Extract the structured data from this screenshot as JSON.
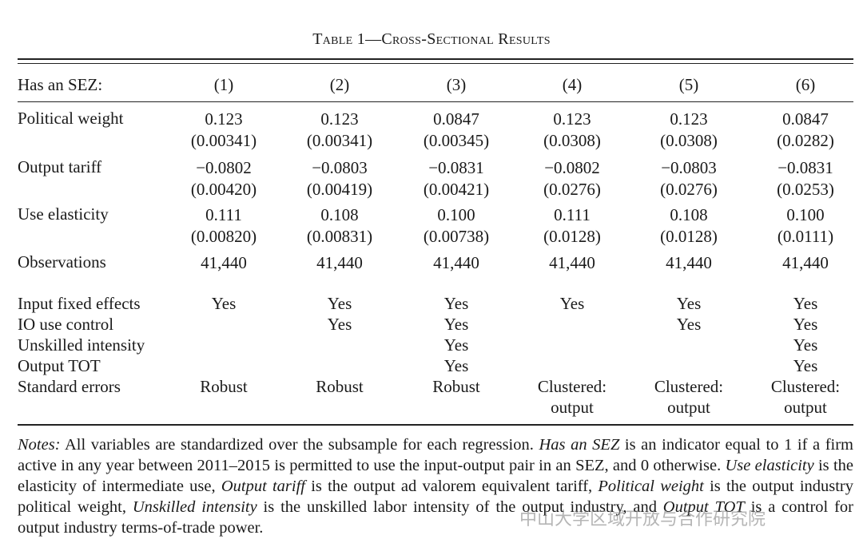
{
  "table": {
    "title": "Table 1—Cross-Sectional Results",
    "header": {
      "label": "Has an SEZ:",
      "columns": [
        "(1)",
        "(2)",
        "(3)",
        "(4)",
        "(5)",
        "(6)"
      ]
    },
    "rows": [
      {
        "label": "Political weight",
        "values": [
          "0.123",
          "0.123",
          "0.0847",
          "0.123",
          "0.123",
          "0.0847"
        ],
        "errors": [
          "(0.00341)",
          "(0.00341)",
          "(0.00345)",
          "(0.0308)",
          "(0.0308)",
          "(0.0282)"
        ]
      },
      {
        "label": "Output tariff",
        "values": [
          "−0.0802",
          "−0.0803",
          "−0.0831",
          "−0.0802",
          "−0.0803",
          "−0.0831"
        ],
        "errors": [
          "(0.00420)",
          "(0.00419)",
          "(0.00421)",
          "(0.0276)",
          "(0.0276)",
          "(0.0253)"
        ]
      },
      {
        "label": "Use elasticity",
        "values": [
          "0.111",
          "0.108",
          "0.100",
          "0.111",
          "0.108",
          "0.100"
        ],
        "errors": [
          "(0.00820)",
          "(0.00831)",
          "(0.00738)",
          "(0.0128)",
          "(0.0128)",
          "(0.0111)"
        ]
      },
      {
        "label": "Observations",
        "values": [
          "41,440",
          "41,440",
          "41,440",
          "41,440",
          "41,440",
          "41,440"
        ]
      }
    ],
    "controls": [
      {
        "label": "Input fixed effects",
        "values": [
          "Yes",
          "Yes",
          "Yes",
          "Yes",
          "Yes",
          "Yes"
        ]
      },
      {
        "label": "IO use control",
        "values": [
          null,
          "Yes",
          "Yes",
          null,
          "Yes",
          "Yes"
        ]
      },
      {
        "label": "Unskilled intensity",
        "values": [
          null,
          null,
          "Yes",
          null,
          null,
          "Yes"
        ]
      },
      {
        "label": "Output TOT",
        "values": [
          null,
          null,
          "Yes",
          null,
          null,
          "Yes"
        ]
      },
      {
        "label": "Standard errors",
        "values": [
          "Robust",
          "Robust",
          "Robust",
          "Clustered: output",
          "Clustered: output",
          "Clustered: output"
        ]
      }
    ],
    "notes": [
      {
        "text": "Notes:",
        "italic": true
      },
      {
        "text": " All variables are standardized over the subsample for each regression. ",
        "italic": false
      },
      {
        "text": "Has an SEZ",
        "italic": true
      },
      {
        "text": " is an indicator equal to 1 if a firm active in any year between 2011–2015 is permitted to use the input-output pair in an SEZ, and 0 otherwise. ",
        "italic": false
      },
      {
        "text": "Use elasticity",
        "italic": true
      },
      {
        "text": " is the elasticity of intermediate use, ",
        "italic": false
      },
      {
        "text": "Output tariff",
        "italic": true
      },
      {
        "text": " is the output ad valorem equivalent tariff, ",
        "italic": false
      },
      {
        "text": "Political weight",
        "italic": true
      },
      {
        "text": " is the output industry political weight, ",
        "italic": false
      },
      {
        "text": "Unskilled intensity",
        "italic": true
      },
      {
        "text": " is the unskilled labor intensity of the output industry, and ",
        "italic": false
      },
      {
        "text": "Output TOT",
        "italic": true
      },
      {
        "text": " is a control for output industry terms-of-trade power.",
        "italic": false
      }
    ],
    "watermark": "中山大学区域开放与合作研究院"
  }
}
